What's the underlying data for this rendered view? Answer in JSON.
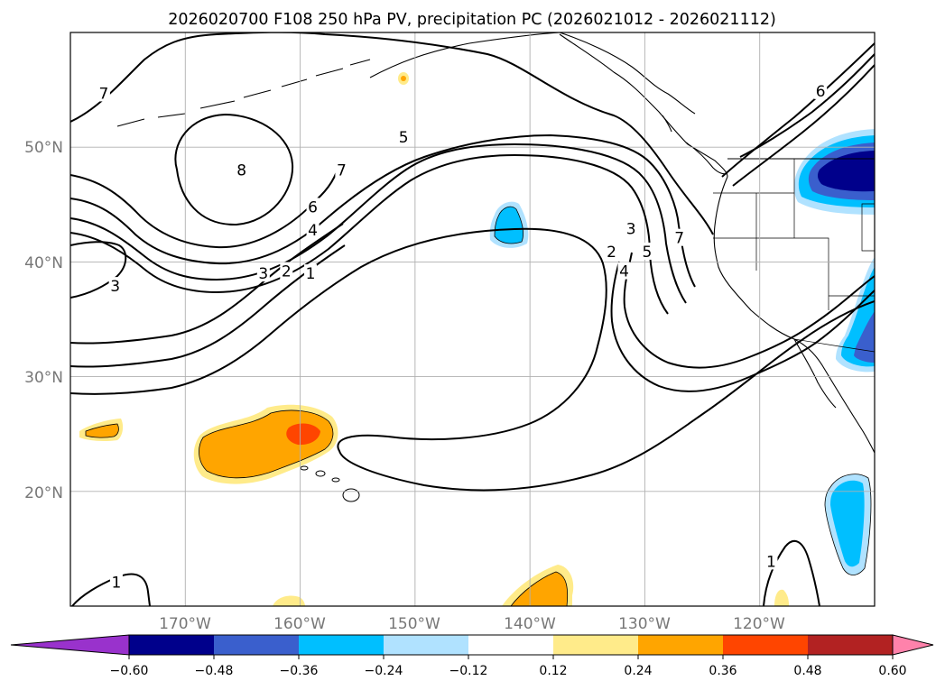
{
  "chart_data": {
    "type": "map-contour",
    "title": "2026020700 F108 250 hPa PV, precipitation PC (2026021012 - 2026021112)",
    "latitude_labels": [
      "50°N",
      "40°N",
      "30°N",
      "20°N"
    ],
    "longitude_labels": [
      "170°W",
      "160°W",
      "150°W",
      "140°W",
      "130°W",
      "120°W"
    ],
    "extent": {
      "lon_min": -180,
      "lon_max": -110,
      "lat_min": 10,
      "lat_max": 60
    },
    "grid": true,
    "pv_contour_levels": [
      1,
      2,
      3,
      4,
      5,
      6,
      7,
      8
    ],
    "pv_contour_labels": [
      {
        "text": "7",
        "lon": -177.1,
        "lat": 54.7
      },
      {
        "text": "8",
        "lon": -165.1,
        "lat": 48.0
      },
      {
        "text": "5",
        "lon": -151.0,
        "lat": 50.9
      },
      {
        "text": "7",
        "lon": -156.4,
        "lat": 48.0
      },
      {
        "text": "6",
        "lon": -158.9,
        "lat": 44.8
      },
      {
        "text": "4",
        "lon": -158.9,
        "lat": 42.8
      },
      {
        "text": "3",
        "lon": -176.1,
        "lat": 37.9
      },
      {
        "text": "3",
        "lon": -163.2,
        "lat": 39.0
      },
      {
        "text": "2",
        "lon": -161.2,
        "lat": 39.2
      },
      {
        "text": "1",
        "lon": -159.1,
        "lat": 39.0
      },
      {
        "text": "2",
        "lon": -132.9,
        "lat": 40.9
      },
      {
        "text": "3",
        "lon": -131.2,
        "lat": 42.9
      },
      {
        "text": "4",
        "lon": -131.8,
        "lat": 39.2
      },
      {
        "text": "5",
        "lon": -129.8,
        "lat": 40.9
      },
      {
        "text": "7",
        "lon": -127.0,
        "lat": 42.1
      },
      {
        "text": "6",
        "lon": -114.7,
        "lat": 54.9
      },
      {
        "text": "1",
        "lon": -176.0,
        "lat": 12.1
      },
      {
        "text": "1",
        "lon": -119.0,
        "lat": 13.9
      }
    ],
    "colorbar": {
      "ticks": [
        "−0.60",
        "−0.48",
        "−0.36",
        "−0.24",
        "−0.12",
        "0.12",
        "0.24",
        "0.36",
        "0.48",
        "0.60"
      ],
      "colors": [
        "#9932cc",
        "#00008b",
        "#3a5fcd",
        "#00bfff",
        "#b0e2ff",
        "#ffffff",
        "#ffeb8a",
        "#ffa500",
        "#ff4500",
        "#b22222",
        "#ff82ab"
      ],
      "extend": "both"
    }
  }
}
